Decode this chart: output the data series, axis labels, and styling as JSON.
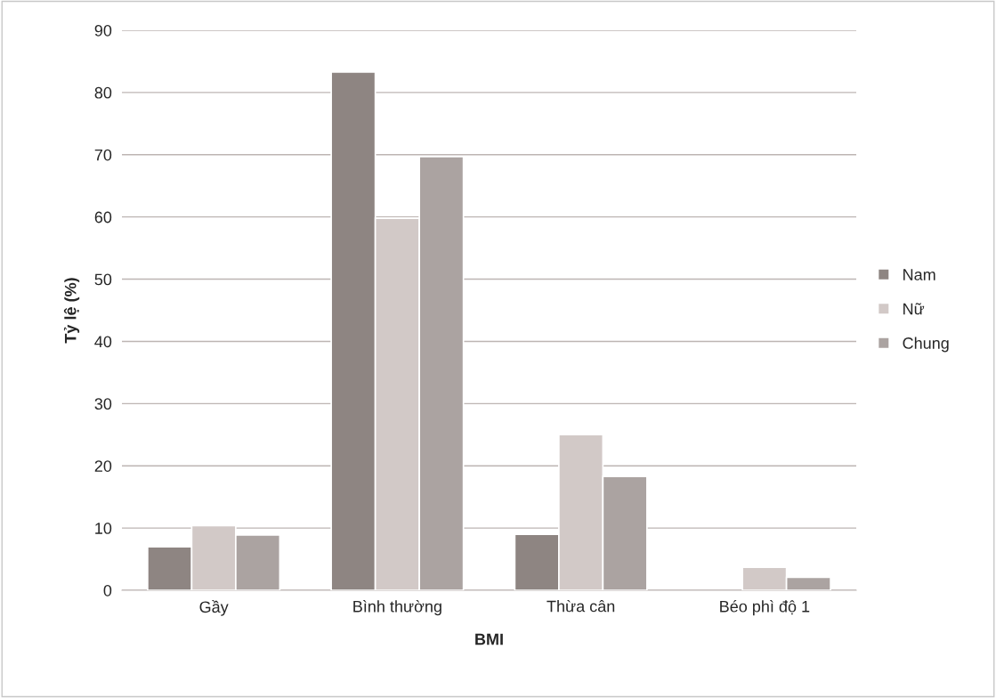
{
  "chart_data": {
    "type": "bar",
    "xlabel": "BMI",
    "ylabel": "Tỷ lệ (%)",
    "categories": [
      "Gầy",
      "Bình thường",
      "Thừa cân",
      "Béo phì độ 1"
    ],
    "series": [
      {
        "name": "Nam",
        "color": "#8e8582",
        "values": [
          7.0,
          83.3,
          9.0,
          null
        ]
      },
      {
        "name": "Nữ",
        "color": "#d2c9c7",
        "values": [
          10.4,
          59.8,
          25.0,
          3.7
        ]
      },
      {
        "name": "Chung",
        "color": "#aba3a1",
        "values": [
          8.9,
          69.7,
          18.3,
          2.1
        ]
      }
    ],
    "ylim": [
      0,
      90
    ],
    "yticks": [
      0,
      10,
      20,
      30,
      40,
      50,
      60,
      70,
      80,
      90
    ],
    "grid": "y",
    "legend": "right"
  }
}
